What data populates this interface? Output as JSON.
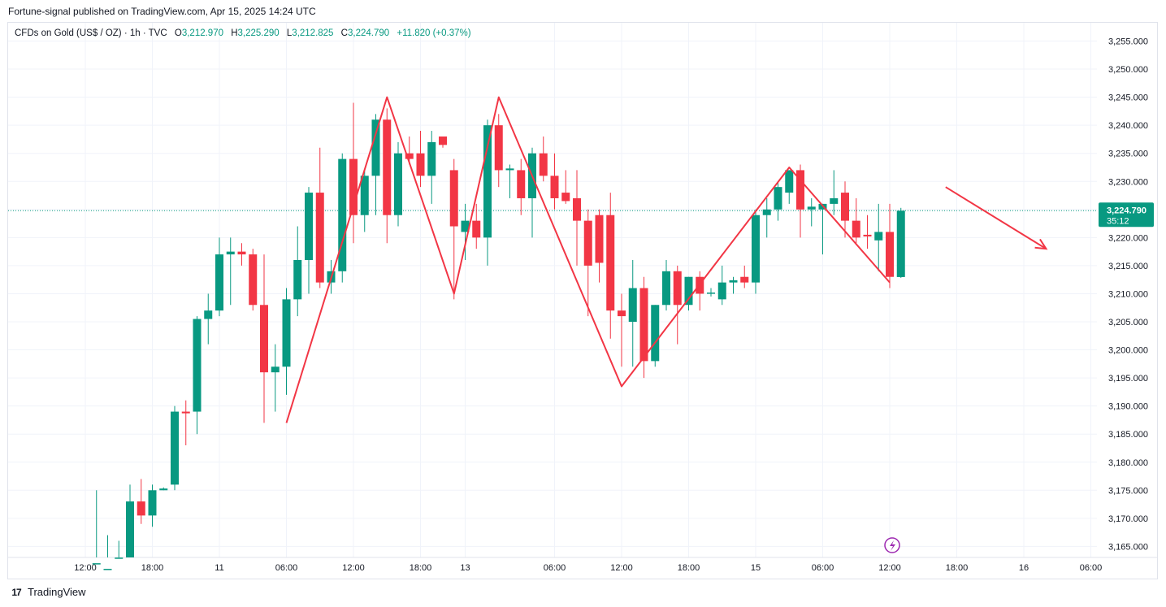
{
  "header": {
    "text": "Fortune-signal published on TradingView.com, Apr 15, 2025 14:24 UTC"
  },
  "legend": {
    "symbol": "CFDs on Gold (US$ / OZ) · 1h · TVC",
    "o_label": "O",
    "o": "3,212.970",
    "h_label": "H",
    "h": "3,225.290",
    "l_label": "L",
    "l": "3,212.825",
    "c_label": "C",
    "c": "3,224.790",
    "change": "+11.820 (+0.37%)"
  },
  "footer": {
    "brand": "TradingView",
    "logo_icon": "tradingview-logo-icon"
  },
  "price_tag": {
    "price": "3,224.790",
    "countdown": "35:12",
    "value": 3224.79
  },
  "colors": {
    "up": "#089981",
    "down": "#f23645",
    "drawing": "#f23645",
    "grid": "#f0f3fa",
    "lastline": "#089981",
    "event": "#9c27b0"
  },
  "event_icon": "lightning-icon",
  "chart_data": {
    "type": "candlestick",
    "grid": true,
    "ylim": [
      3162,
      3258
    ],
    "y_ticks": [
      3165,
      3170,
      3175,
      3180,
      3185,
      3190,
      3195,
      3200,
      3205,
      3210,
      3215,
      3220,
      3225,
      3230,
      3235,
      3240,
      3245,
      3250,
      3255
    ],
    "y_tick_labels": [
      "3,165.000",
      "3,170.000",
      "3,175.000",
      "3,180.000",
      "3,185.000",
      "3,190.000",
      "3,195.000",
      "3,200.000",
      "3,205.000",
      "3,210.000",
      "3,215.000",
      "3,220.000",
      "3,225.000",
      "3,230.000",
      "3,235.000",
      "3,240.000",
      "3,245.000",
      "3,250.000",
      "3,255.000"
    ],
    "x_ticks": [
      {
        "i": -4,
        "label": "12:00"
      },
      {
        "i": 2,
        "label": "18:00"
      },
      {
        "i": 8,
        "label": "11"
      },
      {
        "i": 14,
        "label": "06:00"
      },
      {
        "i": 20,
        "label": "12:00"
      },
      {
        "i": 26,
        "label": "18:00"
      },
      {
        "i": 30,
        "label": "13"
      },
      {
        "i": 38,
        "label": "06:00"
      },
      {
        "i": 44,
        "label": "12:00"
      },
      {
        "i": 50,
        "label": "18:00"
      },
      {
        "i": 56,
        "label": "15"
      },
      {
        "i": 62,
        "label": "06:00"
      },
      {
        "i": 68,
        "label": "12:00"
      },
      {
        "i": 74,
        "label": "18:00"
      },
      {
        "i": 80,
        "label": "16"
      },
      {
        "i": 86,
        "label": "06:00"
      }
    ],
    "candles": [
      {
        "i": -3,
        "o": 3160,
        "h": 3175,
        "l": 3158,
        "c": 3162
      },
      {
        "i": -2,
        "o": 3160,
        "h": 3167,
        "l": 3158,
        "c": 3161
      },
      {
        "i": -1,
        "o": 3161,
        "h": 3166,
        "l": 3158,
        "c": 3163
      },
      {
        "i": 0,
        "o": 3163,
        "h": 3176,
        "l": 3161,
        "c": 3173
      },
      {
        "i": 1,
        "o": 3173,
        "h": 3177,
        "l": 3169,
        "c": 3170.5
      },
      {
        "i": 2,
        "o": 3170.5,
        "h": 3176,
        "l": 3168.5,
        "c": 3175
      },
      {
        "i": 3,
        "o": 3175,
        "h": 3175.5,
        "l": 3175,
        "c": 3175.3
      },
      {
        "i": 4,
        "o": 3176,
        "h": 3190,
        "l": 3175,
        "c": 3189
      },
      {
        "i": 5,
        "o": 3189,
        "h": 3191,
        "l": 3183,
        "c": 3188.7
      },
      {
        "i": 6,
        "o": 3189,
        "h": 3206,
        "l": 3185,
        "c": 3205.5
      },
      {
        "i": 7,
        "o": 3205.5,
        "h": 3210,
        "l": 3201,
        "c": 3207
      },
      {
        "i": 8,
        "o": 3207,
        "h": 3220,
        "l": 3206,
        "c": 3217
      },
      {
        "i": 9,
        "o": 3217,
        "h": 3220,
        "l": 3208,
        "c": 3217.5
      },
      {
        "i": 10,
        "o": 3217.5,
        "h": 3219,
        "l": 3215,
        "c": 3217
      },
      {
        "i": 11,
        "o": 3217,
        "h": 3218,
        "l": 3207,
        "c": 3208
      },
      {
        "i": 12,
        "o": 3208,
        "h": 3217,
        "l": 3187,
        "c": 3196
      },
      {
        "i": 13,
        "o": 3196,
        "h": 3201,
        "l": 3189,
        "c": 3197
      },
      {
        "i": 14,
        "o": 3197,
        "h": 3211,
        "l": 3192,
        "c": 3209
      },
      {
        "i": 15,
        "o": 3209,
        "h": 3222,
        "l": 3206,
        "c": 3216
      },
      {
        "i": 16,
        "o": 3216,
        "h": 3229,
        "l": 3210,
        "c": 3228
      },
      {
        "i": 17,
        "o": 3228,
        "h": 3236,
        "l": 3211,
        "c": 3212
      },
      {
        "i": 18,
        "o": 3212,
        "h": 3216,
        "l": 3210,
        "c": 3214
      },
      {
        "i": 19,
        "o": 3214,
        "h": 3235,
        "l": 3212,
        "c": 3234
      },
      {
        "i": 20,
        "o": 3234,
        "h": 3244,
        "l": 3219,
        "c": 3224
      },
      {
        "i": 21,
        "o": 3224,
        "h": 3232,
        "l": 3221,
        "c": 3231
      },
      {
        "i": 22,
        "o": 3231,
        "h": 3242,
        "l": 3224,
        "c": 3241
      },
      {
        "i": 23,
        "o": 3241,
        "h": 3243,
        "l": 3219,
        "c": 3224
      },
      {
        "i": 24,
        "o": 3224,
        "h": 3237,
        "l": 3222,
        "c": 3235
      },
      {
        "i": 25,
        "o": 3235,
        "h": 3238,
        "l": 3233,
        "c": 3234
      },
      {
        "i": 26,
        "o": 3235,
        "h": 3239,
        "l": 3229,
        "c": 3231
      },
      {
        "i": 27,
        "o": 3231,
        "h": 3239,
        "l": 3226,
        "c": 3237
      },
      {
        "i": 28,
        "o": 3238,
        "h": 3238,
        "l": 3236,
        "c": 3236.5
      },
      {
        "i": 29,
        "o": 3232,
        "h": 3234,
        "l": 3209,
        "c": 3222
      },
      {
        "i": 30,
        "o": 3221,
        "h": 3226,
        "l": 3216,
        "c": 3223
      },
      {
        "i": 31,
        "o": 3223,
        "h": 3226,
        "l": 3218,
        "c": 3220
      },
      {
        "i": 32,
        "o": 3220,
        "h": 3241,
        "l": 3215,
        "c": 3240
      },
      {
        "i": 33,
        "o": 3240,
        "h": 3242,
        "l": 3229,
        "c": 3232
      },
      {
        "i": 34,
        "o": 3232,
        "h": 3233,
        "l": 3227,
        "c": 3232.3
      },
      {
        "i": 35,
        "o": 3232,
        "h": 3234,
        "l": 3224,
        "c": 3227
      },
      {
        "i": 36,
        "o": 3227,
        "h": 3236,
        "l": 3220,
        "c": 3235
      },
      {
        "i": 37,
        "o": 3235,
        "h": 3238,
        "l": 3230,
        "c": 3231
      },
      {
        "i": 38,
        "o": 3231,
        "h": 3235,
        "l": 3225,
        "c": 3227
      },
      {
        "i": 39,
        "o": 3228,
        "h": 3232,
        "l": 3226,
        "c": 3226.5
      },
      {
        "i": 40,
        "o": 3227,
        "h": 3232,
        "l": 3215,
        "c": 3223
      },
      {
        "i": 41,
        "o": 3223,
        "h": 3225,
        "l": 3206,
        "c": 3215
      },
      {
        "i": 42,
        "o": 3224,
        "h": 3225,
        "l": 3212,
        "c": 3215.5
      },
      {
        "i": 43,
        "o": 3224,
        "h": 3228,
        "l": 3202,
        "c": 3207
      },
      {
        "i": 44,
        "o": 3207,
        "h": 3210,
        "l": 3197,
        "c": 3206
      },
      {
        "i": 45,
        "o": 3205,
        "h": 3216,
        "l": 3197,
        "c": 3211
      },
      {
        "i": 46,
        "o": 3211,
        "h": 3213,
        "l": 3195,
        "c": 3198
      },
      {
        "i": 47,
        "o": 3198,
        "h": 3208,
        "l": 3197,
        "c": 3208
      },
      {
        "i": 48,
        "o": 3208,
        "h": 3216,
        "l": 3207,
        "c": 3214
      },
      {
        "i": 49,
        "o": 3214,
        "h": 3215,
        "l": 3201,
        "c": 3208
      },
      {
        "i": 50,
        "o": 3208,
        "h": 3213,
        "l": 3207,
        "c": 3213
      },
      {
        "i": 51,
        "o": 3213,
        "h": 3214,
        "l": 3207,
        "c": 3210
      },
      {
        "i": 52,
        "o": 3210,
        "h": 3211,
        "l": 3209.5,
        "c": 3210.2
      },
      {
        "i": 53,
        "o": 3209,
        "h": 3215,
        "l": 3208,
        "c": 3212
      },
      {
        "i": 54,
        "o": 3212,
        "h": 3213,
        "l": 3210,
        "c": 3212.4
      },
      {
        "i": 55,
        "o": 3213,
        "h": 3215,
        "l": 3211,
        "c": 3212
      },
      {
        "i": 56,
        "o": 3212,
        "h": 3225,
        "l": 3210,
        "c": 3224
      },
      {
        "i": 57,
        "o": 3224,
        "h": 3227,
        "l": 3220,
        "c": 3225
      },
      {
        "i": 58,
        "o": 3225,
        "h": 3230,
        "l": 3223,
        "c": 3229
      },
      {
        "i": 59,
        "o": 3228,
        "h": 3232,
        "l": 3226,
        "c": 3232
      },
      {
        "i": 60,
        "o": 3232,
        "h": 3233,
        "l": 3220,
        "c": 3225
      },
      {
        "i": 61,
        "o": 3225,
        "h": 3227,
        "l": 3222,
        "c": 3225.5
      },
      {
        "i": 62,
        "o": 3225,
        "h": 3226,
        "l": 3217,
        "c": 3226
      },
      {
        "i": 63,
        "o": 3226,
        "h": 3232,
        "l": 3224,
        "c": 3227
      },
      {
        "i": 64,
        "o": 3228,
        "h": 3230,
        "l": 3220,
        "c": 3223
      },
      {
        "i": 65,
        "o": 3223,
        "h": 3227,
        "l": 3219,
        "c": 3220
      },
      {
        "i": 66,
        "o": 3220.5,
        "h": 3224,
        "l": 3218,
        "c": 3220.2
      },
      {
        "i": 67,
        "o": 3219.5,
        "h": 3226,
        "l": 3214,
        "c": 3221
      },
      {
        "i": 68,
        "o": 3221,
        "h": 3226,
        "l": 3211,
        "c": 3213
      },
      {
        "i": 69,
        "o": 3212.97,
        "h": 3225.29,
        "l": 3212.825,
        "c": 3224.79
      }
    ],
    "annotations": [
      {
        "type": "polyline",
        "points": [
          [
            14,
            3187
          ],
          [
            23,
            3245
          ],
          [
            29,
            3210
          ],
          [
            33,
            3245
          ],
          [
            44,
            3193.5
          ],
          [
            59,
            3232.5
          ],
          [
            68,
            3212
          ]
        ]
      },
      {
        "type": "arrow",
        "points": [
          [
            73,
            3229
          ],
          [
            82,
            3218
          ]
        ]
      }
    ]
  }
}
